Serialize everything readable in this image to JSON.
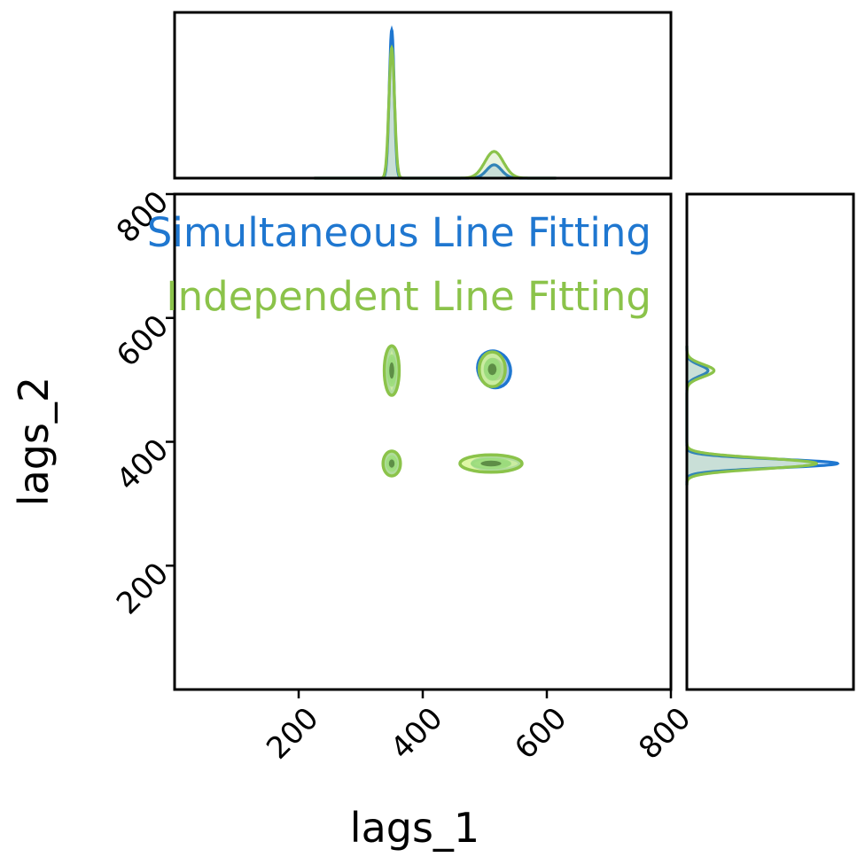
{
  "chart_data": {
    "type": "corner_kde",
    "title": "",
    "xlabel": "lags_1",
    "ylabel": "lags_2",
    "xlim": [
      0,
      800
    ],
    "ylim": [
      0,
      800
    ],
    "xticks": [
      200,
      400,
      600,
      800
    ],
    "yticks": [
      200,
      400,
      600,
      800
    ],
    "legend": {
      "placement": "top-right",
      "entries": [
        {
          "label": "Simultaneous Line Fitting",
          "color": "#1f77d0"
        },
        {
          "label": "Independent Line Fitting",
          "color": "#8bc34a"
        }
      ]
    },
    "series": [
      {
        "name": "Simultaneous Line Fitting",
        "color": "#1f77d0",
        "marginal_x": {
          "range": [
            225,
            615
          ],
          "components": [
            {
              "mean": 350,
              "sd": 4,
              "height": 1.0
            },
            {
              "mean": 515,
              "sd": 12,
              "height": 0.09
            }
          ]
        },
        "marginal_y": {
          "range": [
            330,
            555
          ],
          "components": [
            {
              "mean": 365,
              "sd": 7,
              "height": 1.0
            },
            {
              "mean": 515,
              "sd": 9,
              "height": 0.14
            }
          ]
        },
        "contours": [
          {
            "cx": 350,
            "cy": 365,
            "rx": 10,
            "ry": 15,
            "angle": 0
          },
          {
            "cx": 350,
            "cy": 515,
            "rx": 7,
            "ry": 36,
            "angle": 0
          },
          {
            "cx": 518,
            "cy": 365,
            "rx": 38,
            "ry": 10,
            "angle": 0
          },
          {
            "cx": 515,
            "cy": 517,
            "rx": 26,
            "ry": 30,
            "angle": 20
          }
        ]
      },
      {
        "name": "Independent Line Fitting",
        "color": "#8bc34a",
        "marginal_x": {
          "range": [
            225,
            615
          ],
          "components": [
            {
              "mean": 350,
              "sd": 4.5,
              "height": 0.88
            },
            {
              "mean": 515,
              "sd": 15,
              "height": 0.18
            }
          ]
        },
        "marginal_y": {
          "range": [
            330,
            555
          ],
          "components": [
            {
              "mean": 365,
              "sd": 8.5,
              "height": 0.86
            },
            {
              "mean": 515,
              "sd": 10,
              "height": 0.18
            }
          ]
        },
        "contours": [
          {
            "cx": 350,
            "cy": 365,
            "rx": 14,
            "ry": 20,
            "angle": 0
          },
          {
            "cx": 350,
            "cy": 515,
            "rx": 12,
            "ry": 40,
            "angle": 0
          },
          {
            "cx": 510,
            "cy": 365,
            "rx": 50,
            "ry": 14,
            "angle": 0
          },
          {
            "cx": 512,
            "cy": 517,
            "rx": 21,
            "ry": 28,
            "angle": 0
          }
        ]
      }
    ]
  }
}
